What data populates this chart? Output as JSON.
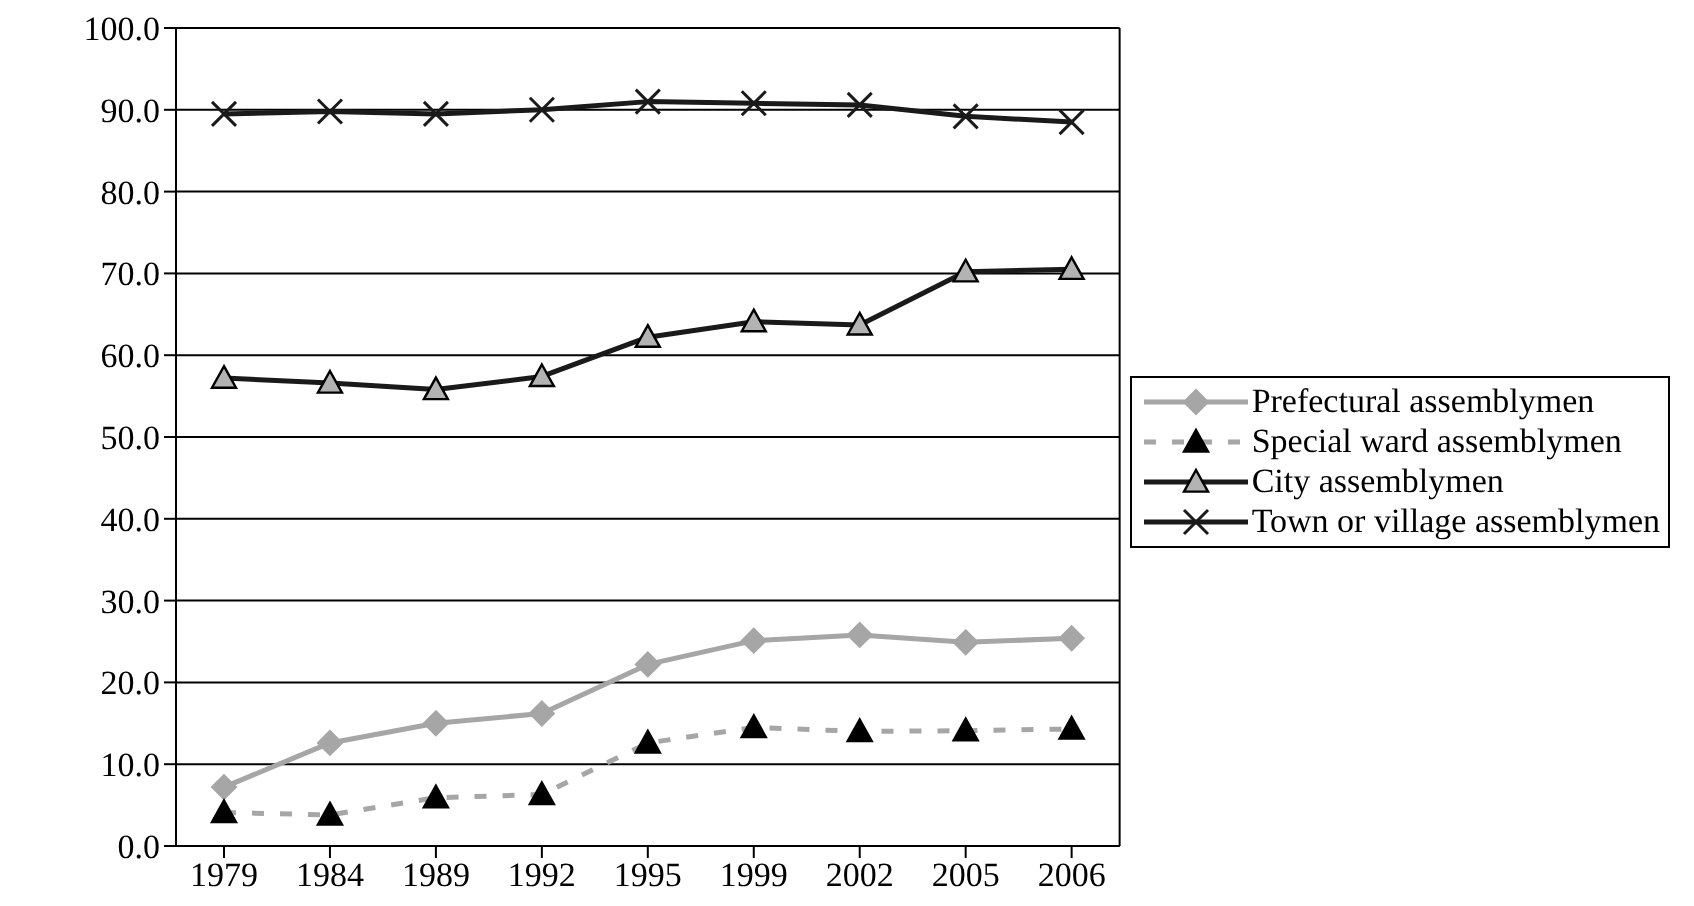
{
  "chart_data": {
    "type": "line",
    "categories": [
      "1979",
      "1984",
      "1989",
      "1992",
      "1995",
      "1999",
      "2002",
      "2005",
      "2006"
    ],
    "ylim": [
      0,
      100
    ],
    "yticks": [
      {
        "value": 0,
        "label": "0.0"
      },
      {
        "value": 10,
        "label": "10.0"
      },
      {
        "value": 20,
        "label": "20.0"
      },
      {
        "value": 30,
        "label": "30.0"
      },
      {
        "value": 40,
        "label": "40.0"
      },
      {
        "value": 50,
        "label": "50.0"
      },
      {
        "value": 60,
        "label": "60.0"
      },
      {
        "value": 70,
        "label": "70.0"
      },
      {
        "value": 80,
        "label": "80.0"
      },
      {
        "value": 90,
        "label": "90.0"
      },
      {
        "value": 100,
        "label": "100.0"
      }
    ],
    "grid": "y",
    "legend": "right",
    "series": [
      {
        "name": "Prefectural assemblymen",
        "color": "#a6a6a6",
        "marker": "diamond",
        "line_style": "solid",
        "values": [
          7.2,
          12.6,
          15.0,
          16.2,
          22.2,
          25.1,
          25.8,
          24.9,
          25.4
        ]
      },
      {
        "name": "Special ward assemblymen",
        "color": "#a6a6a6",
        "marker": "triangle",
        "line_style": "dashed",
        "values": [
          4.1,
          3.8,
          5.9,
          6.3,
          12.6,
          14.5,
          14.0,
          14.1,
          14.3
        ]
      },
      {
        "name": "City assemblymen",
        "color": "#1a1a1a",
        "marker": "triangle",
        "line_style": "solid",
        "values": [
          57.2,
          56.6,
          55.8,
          57.4,
          62.2,
          64.1,
          63.7,
          70.2,
          70.5
        ]
      },
      {
        "name": "Town or village assemblymen",
        "color": "#1a1a1a",
        "marker": "cross",
        "line_style": "solid",
        "values": [
          89.5,
          89.8,
          89.5,
          90.0,
          91.0,
          90.8,
          90.6,
          89.2,
          88.5
        ]
      }
    ]
  }
}
